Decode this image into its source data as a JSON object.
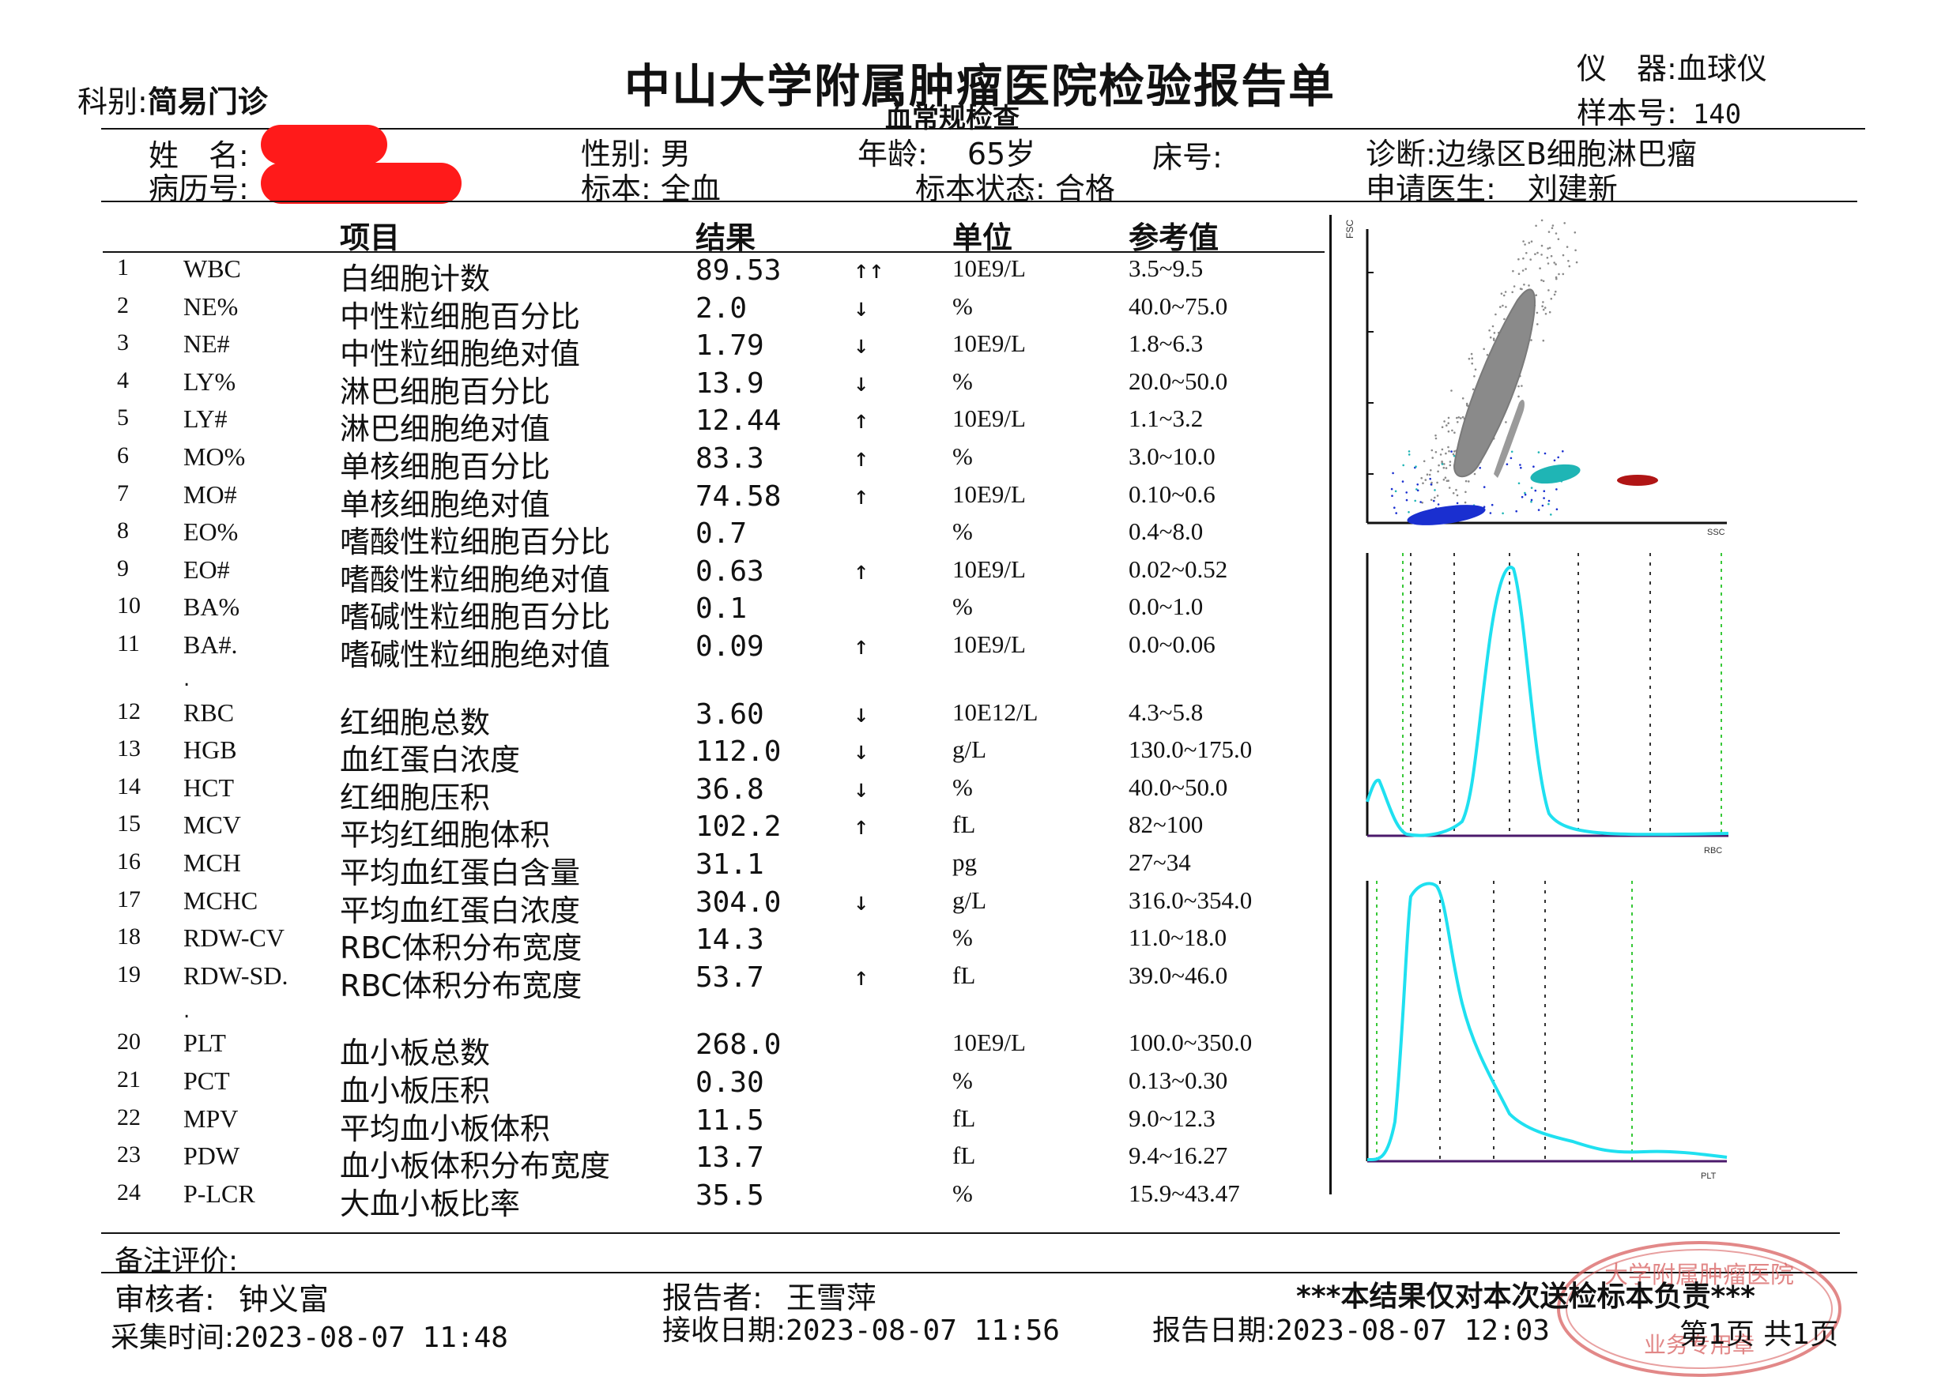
{
  "header": {
    "department_label": "科别:",
    "department_value": "简易门诊",
    "title": "中山大学附属肿瘤医院检验报告单",
    "subtitle": "血常规检查",
    "instrument_label": "仪　器:",
    "instrument_value": "血球仪",
    "sample_label": "样本号:",
    "sample_value": "140"
  },
  "patient": {
    "name_label": "姓　名:",
    "record_label": "病历号:",
    "sex_label": "性别:",
    "sex_value": "男",
    "specimen_label": "标本:",
    "specimen_value": "全血",
    "age_label": "年龄:",
    "age_value": "65岁",
    "specimen_state_label": "标本状态:",
    "specimen_state_value": "合格",
    "bed_label": "床号:",
    "diagnosis_label": "诊断:",
    "diagnosis_value": "边缘区B细胞淋巴瘤",
    "doctor_label": "申请医生:",
    "doctor_value": "刘建新"
  },
  "columns": {
    "item": "项目",
    "result": "结果",
    "unit": "单位",
    "reference": "参考值"
  },
  "rows": [
    {
      "no": "1",
      "code": "WBC",
      "name": "白细胞计数",
      "value": "89.53",
      "flag": "↑↑",
      "unit": "10E9/L",
      "ref": "3.5~9.5"
    },
    {
      "no": "2",
      "code": "NE%",
      "name": "中性粒细胞百分比",
      "value": "2.0",
      "flag": "↓",
      "unit": "%",
      "ref": "40.0~75.0"
    },
    {
      "no": "3",
      "code": "NE#",
      "name": "中性粒细胞绝对值",
      "value": "1.79",
      "flag": "↓",
      "unit": "10E9/L",
      "ref": "1.8~6.3"
    },
    {
      "no": "4",
      "code": "LY%",
      "name": "淋巴细胞百分比",
      "value": "13.9",
      "flag": "↓",
      "unit": "%",
      "ref": "20.0~50.0"
    },
    {
      "no": "5",
      "code": "LY#",
      "name": "淋巴细胞绝对值",
      "value": "12.44",
      "flag": "↑",
      "unit": "10E9/L",
      "ref": "1.1~3.2"
    },
    {
      "no": "6",
      "code": "MO%",
      "name": "单核细胞百分比",
      "value": "83.3",
      "flag": "↑",
      "unit": "%",
      "ref": "3.0~10.0"
    },
    {
      "no": "7",
      "code": "MO#",
      "name": "单核细胞绝对值",
      "value": "74.58",
      "flag": "↑",
      "unit": "10E9/L",
      "ref": "0.10~0.6"
    },
    {
      "no": "8",
      "code": "EO%",
      "name": "嗜酸性粒细胞百分比",
      "value": "0.7",
      "flag": "",
      "unit": "%",
      "ref": "0.4~8.0"
    },
    {
      "no": "9",
      "code": "EO#",
      "name": "嗜酸性粒细胞绝对值",
      "value": "0.63",
      "flag": "↑",
      "unit": "10E9/L",
      "ref": "0.02~0.52"
    },
    {
      "no": "10",
      "code": "BA%",
      "name": "嗜碱性粒细胞百分比",
      "value": "0.1",
      "flag": "",
      "unit": "%",
      "ref": "0.0~1.0"
    },
    {
      "no": "11",
      "code": "BA#.",
      "name": "嗜碱性粒细胞绝对值",
      "value": "0.09",
      "flag": "↑",
      "unit": "10E9/L",
      "ref": "0.0~0.06"
    },
    {
      "no": "12",
      "code": "RBC",
      "name": "红细胞总数",
      "value": "3.60",
      "flag": "↓",
      "unit": "10E12/L",
      "ref": "4.3~5.8"
    },
    {
      "no": "13",
      "code": "HGB",
      "name": "血红蛋白浓度",
      "value": "112.0",
      "flag": "↓",
      "unit": "g/L",
      "ref": "130.0~175.0"
    },
    {
      "no": "14",
      "code": "HCT",
      "name": "红细胞压积",
      "value": "36.8",
      "flag": "↓",
      "unit": "%",
      "ref": "40.0~50.0"
    },
    {
      "no": "15",
      "code": "MCV",
      "name": "平均红细胞体积",
      "value": "102.2",
      "flag": "↑",
      "unit": "fL",
      "ref": "82~100"
    },
    {
      "no": "16",
      "code": "MCH",
      "name": "平均血红蛋白含量",
      "value": "31.1",
      "flag": "",
      "unit": "pg",
      "ref": "27~34"
    },
    {
      "no": "17",
      "code": "MCHC",
      "name": "平均血红蛋白浓度",
      "value": "304.0",
      "flag": "↓",
      "unit": "g/L",
      "ref": "316.0~354.0"
    },
    {
      "no": "18",
      "code": "RDW-CV",
      "name": "RBC体积分布宽度",
      "value": "14.3",
      "flag": "",
      "unit": "%",
      "ref": "11.0~18.0"
    },
    {
      "no": "19",
      "code": "RDW-SD.",
      "name": "RBC体积分布宽度",
      "value": "53.7",
      "flag": "↑",
      "unit": "fL",
      "ref": "39.0~46.0"
    },
    {
      "no": "20",
      "code": "PLT",
      "name": "血小板总数",
      "value": "268.0",
      "flag": "",
      "unit": "10E9/L",
      "ref": "100.0~350.0"
    },
    {
      "no": "21",
      "code": "PCT",
      "name": "血小板压积",
      "value": "0.30",
      "flag": "",
      "unit": "%",
      "ref": "0.13~0.30"
    },
    {
      "no": "22",
      "code": "MPV",
      "name": "平均血小板体积",
      "value": "11.5",
      "flag": "",
      "unit": "fL",
      "ref": "9.0~12.3"
    },
    {
      "no": "23",
      "code": "PDW",
      "name": "血小板体积分布宽度",
      "value": "13.7",
      "flag": "",
      "unit": "fL",
      "ref": "9.4~16.27"
    },
    {
      "no": "24",
      "code": "P-LCR",
      "name": "大血小板比率",
      "value": "35.5",
      "flag": "",
      "unit": "%",
      "ref": "15.9~43.47"
    }
  ],
  "footer": {
    "remark_label": "备注评价:",
    "reviewer_label": "审核者:",
    "reviewer_value": "钟义富",
    "reporter_label": "报告者:",
    "reporter_value": "王雪萍",
    "disclaimer": "***本结果仅对本次送检标本负责***",
    "collect_label": "采集时间:",
    "collect_value": "2023-08-07 11:48",
    "receive_label": "接收日期:",
    "receive_value": "2023-08-07 11:56",
    "report_label": "报告日期:",
    "report_value": "2023-08-07 12:03",
    "page_info": "第1页 共1页",
    "stamp_text": "大学附属肿瘤医院",
    "stamp_bottom": "业务专用章"
  },
  "colors": {
    "scatter_main": "#8a8a8a",
    "scatter_blue": "#1a2fd0",
    "scatter_cyan": "#1fb5b5",
    "scatter_red": "#b01515",
    "histogram_curve": "#1fe0f0",
    "histogram_axis": "#4b1a6b",
    "marker_green": "#38c838",
    "redaction": "#ff1a1a",
    "stamp": "#d86060"
  }
}
